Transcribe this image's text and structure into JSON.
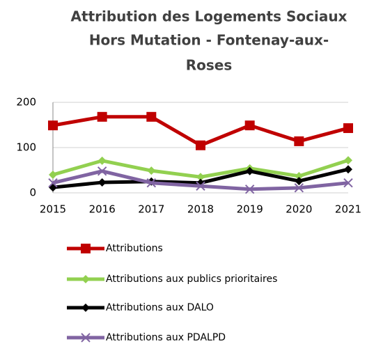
{
  "chart_data": {
    "type": "line",
    "title": [
      "Attribution des Logements Sociaux",
      "Hors Mutation - Fontenay-aux-",
      "Roses"
    ],
    "categories": [
      "2015",
      "2016",
      "2017",
      "2018",
      "2019",
      "2020",
      "2021"
    ],
    "series": [
      {
        "name": "Attributions",
        "color": "#c00000",
        "marker": "square",
        "values": [
          149,
          168,
          168,
          105,
          149,
          114,
          143
        ]
      },
      {
        "name": "Attributions aux publics prioritaires",
        "color": "#92d050",
        "marker": "diamond",
        "values": [
          40,
          71,
          49,
          35,
          54,
          37,
          72
        ]
      },
      {
        "name": "Attributions aux DALO",
        "color": "#000000",
        "marker": "diamond",
        "values": [
          12,
          23,
          25,
          22,
          48,
          26,
          52
        ]
      },
      {
        "name": "Attributions aux PDALPD",
        "color": "#8064a2",
        "marker": "x",
        "values": [
          22,
          48,
          22,
          15,
          8,
          11,
          22
        ]
      }
    ],
    "ylim": [
      0,
      200
    ],
    "yticks": [
      0,
      100,
      200
    ],
    "grid": true,
    "legend": "bottom"
  }
}
